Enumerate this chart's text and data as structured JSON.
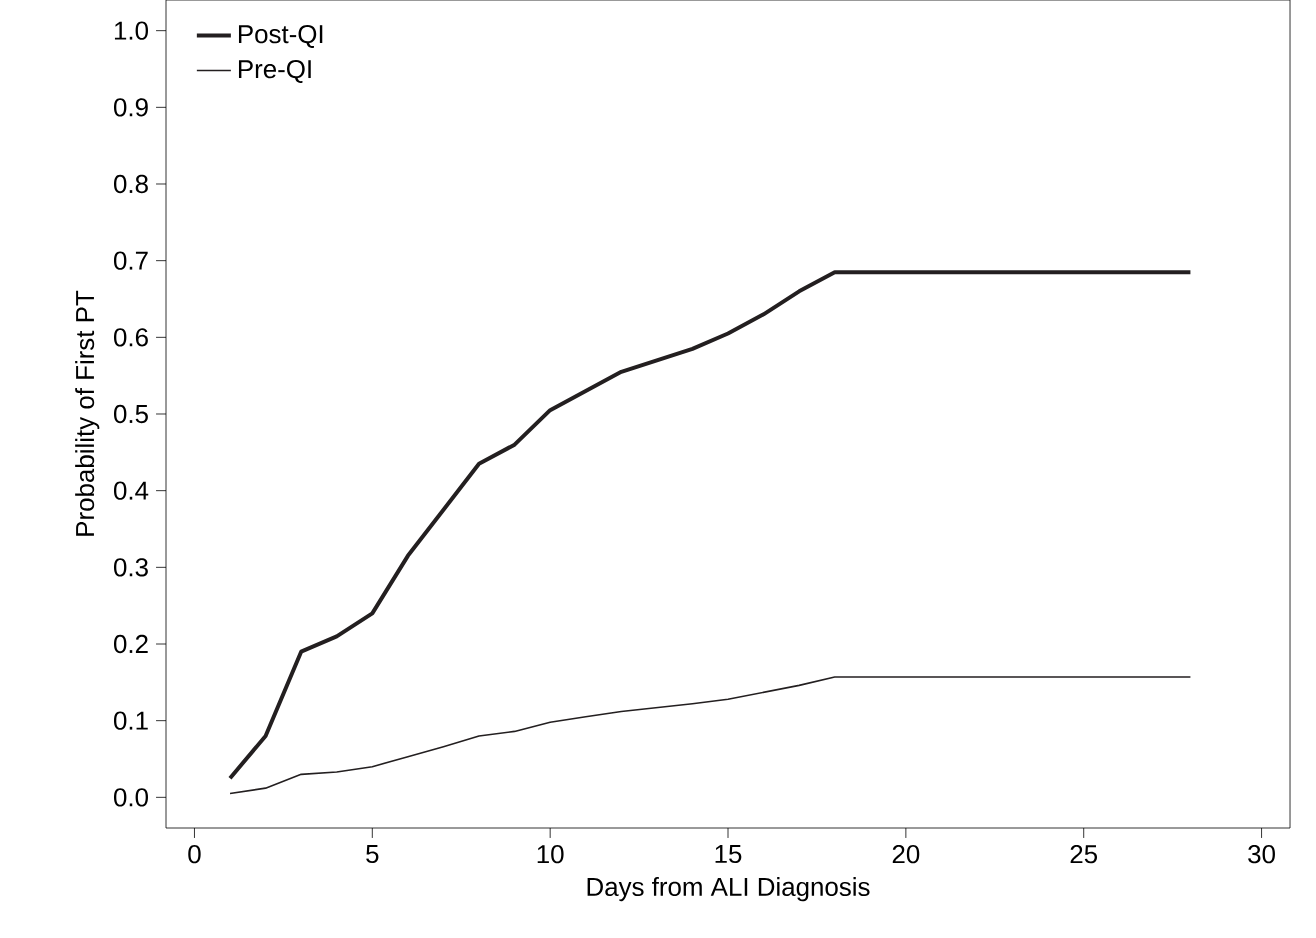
{
  "chart_data": {
    "type": "line",
    "xlabel": "Days from ALI Diagnosis",
    "ylabel": "Probability of First PT",
    "xlim": [
      -0.8,
      30.8
    ],
    "ylim": [
      -0.04,
      1.04
    ],
    "xticks": [
      0,
      5,
      10,
      15,
      20,
      25,
      30
    ],
    "yticks": [
      {
        "value": 0,
        "label": "0.0"
      },
      {
        "value": 0.1,
        "label": "0.1"
      },
      {
        "value": 0.2,
        "label": "0.2"
      },
      {
        "value": 0.3,
        "label": "0.3"
      },
      {
        "value": 0.4,
        "label": "0.4"
      },
      {
        "value": 0.5,
        "label": "0.5"
      },
      {
        "value": 0.6,
        "label": "0.6"
      },
      {
        "value": 0.7,
        "label": "0.7"
      },
      {
        "value": 0.8,
        "label": "0.8"
      },
      {
        "value": 0.9,
        "label": "0.9"
      },
      {
        "value": 1,
        "label": "1.0"
      }
    ],
    "x": [
      1,
      2,
      3,
      4,
      5,
      6,
      7,
      8,
      9,
      10,
      11,
      12,
      13,
      14,
      15,
      16,
      17,
      18,
      28
    ],
    "legend": "top left",
    "grid": false,
    "marker": "none",
    "series": [
      {
        "name": "Post-QI",
        "color": "#231f20",
        "values": [
          0.025,
          0.08,
          0.19,
          0.21,
          0.24,
          0.315,
          0.375,
          0.435,
          0.46,
          0.505,
          0.53,
          0.555,
          0.57,
          0.585,
          0.605,
          0.63,
          0.66,
          0.685,
          0.685
        ]
      },
      {
        "name": "Pre-QI",
        "color": "#231f20",
        "values": [
          0.005,
          0.012,
          0.03,
          0.033,
          0.04,
          0.053,
          0.066,
          0.08,
          0.086,
          0.098,
          0.105,
          0.112,
          0.117,
          0.122,
          0.128,
          0.137,
          0.146,
          0.157,
          0.157
        ]
      }
    ]
  }
}
